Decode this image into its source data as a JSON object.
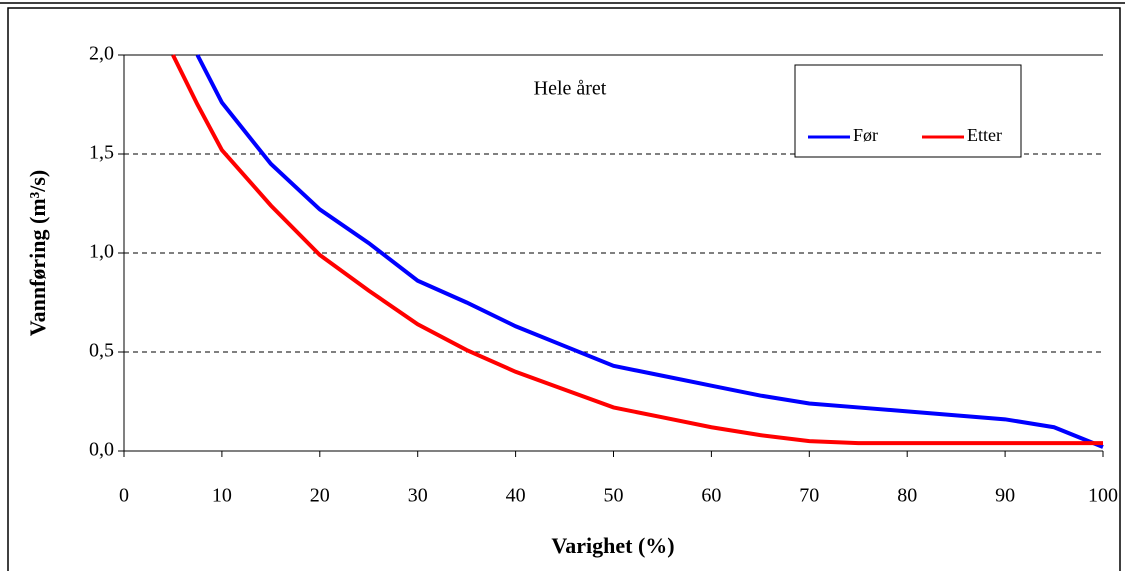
{
  "chart_data": {
    "type": "line",
    "annotation": "Hele året",
    "xlabel": "Varighet (%)",
    "ylabel": "Vannføring (m³/s)",
    "x": [
      5,
      7.5,
      10,
      15,
      20,
      25,
      30,
      35,
      40,
      45,
      50,
      55,
      60,
      65,
      70,
      75,
      80,
      85,
      90,
      95,
      100
    ],
    "series": [
      {
        "name": "Før",
        "color": "#0000ff",
        "values": [
          null,
          2.0,
          1.76,
          1.45,
          1.22,
          1.05,
          0.86,
          0.75,
          0.63,
          0.53,
          0.43,
          0.38,
          0.33,
          0.28,
          0.24,
          0.22,
          0.2,
          0.18,
          0.16,
          0.12,
          0.02
        ]
      },
      {
        "name": "Etter",
        "color": "#ff0000",
        "values": [
          2.0,
          1.75,
          1.52,
          1.24,
          0.99,
          0.81,
          0.64,
          0.51,
          0.4,
          0.31,
          0.22,
          0.17,
          0.12,
          0.08,
          0.05,
          0.04,
          0.04,
          0.04,
          0.04,
          0.04,
          0.04
        ]
      }
    ],
    "xlim": [
      0,
      100
    ],
    "xticks": [
      0,
      10,
      20,
      30,
      40,
      50,
      60,
      70,
      80,
      90,
      100
    ],
    "ylim": [
      0,
      2
    ],
    "yticks": [
      {
        "value": 0,
        "label": "0,0"
      },
      {
        "value": 0.5,
        "label": "0,5"
      },
      {
        "value": 1,
        "label": "1,0"
      },
      {
        "value": 1.5,
        "label": "1,5"
      },
      {
        "value": 2,
        "label": "2,0"
      }
    ],
    "grid": true,
    "legend": "upper right"
  }
}
